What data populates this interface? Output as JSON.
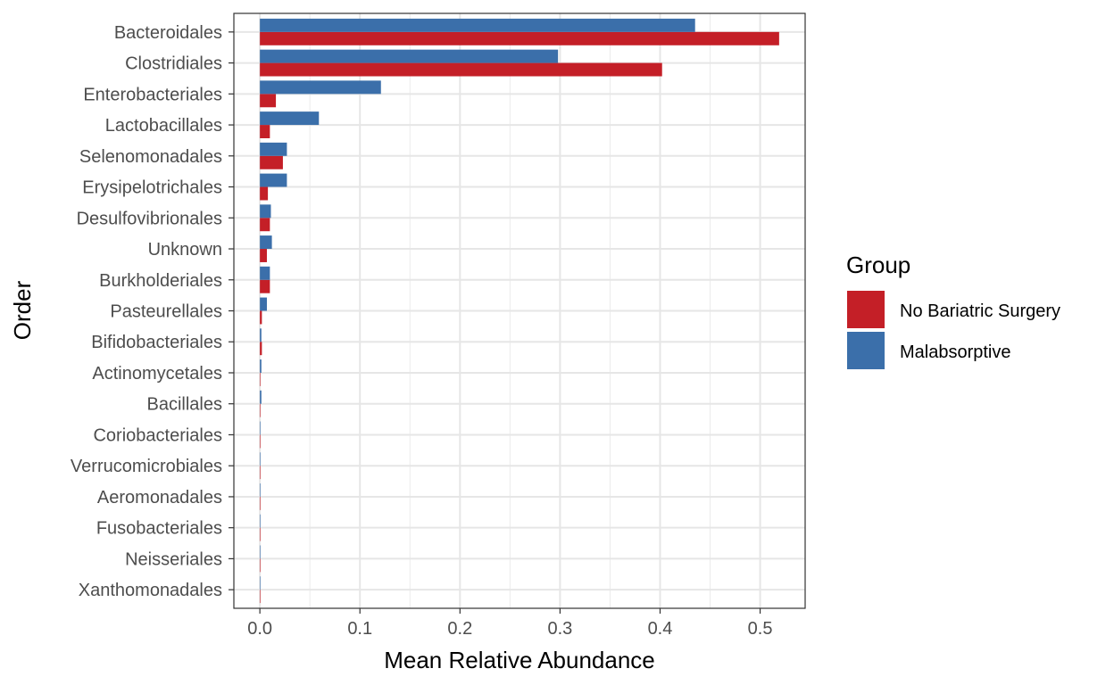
{
  "chart_data": {
    "type": "bar",
    "orientation": "horizontal",
    "xlabel": "Mean Relative Abundance",
    "ylabel": "Order",
    "xlim": [
      -0.026,
      0.545
    ],
    "x_ticks": [
      "0.0",
      "0.1",
      "0.2",
      "0.3",
      "0.4",
      "0.5"
    ],
    "grid": true,
    "legend": {
      "title": "Group",
      "position": "right"
    },
    "categories": [
      "Bacteroidales",
      "Clostridiales",
      "Enterobacteriales",
      "Lactobacillales",
      "Selenomonadales",
      "Erysipelotrichales",
      "Desulfovibrionales",
      "Unknown",
      "Burkholderiales",
      "Pasteurellales",
      "Bifidobacteriales",
      "Actinomycetales",
      "Bacillales",
      "Coriobacteriales",
      "Verrucomicrobiales",
      "Aeromonadales",
      "Fusobacteriales",
      "Neisseriales",
      "Xanthomonadales"
    ],
    "series": [
      {
        "name": "No Bariatric Surgery",
        "color": "#c41f27",
        "values": [
          0.519,
          0.402,
          0.016,
          0.01,
          0.023,
          0.008,
          0.01,
          0.007,
          0.01,
          0.002,
          0.002,
          0.0005,
          0.0003,
          0.0003,
          0.0002,
          0.0001,
          0.0001,
          0.0001,
          0.0001
        ]
      },
      {
        "name": "Malabsorptive",
        "color": "#3b6faa",
        "values": [
          0.435,
          0.298,
          0.121,
          0.059,
          0.027,
          0.027,
          0.011,
          0.012,
          0.01,
          0.007,
          0.0015,
          0.0015,
          0.0015,
          0.0005,
          0.0004,
          0.0002,
          0.0001,
          0.0001,
          0.0001
        ]
      }
    ]
  }
}
